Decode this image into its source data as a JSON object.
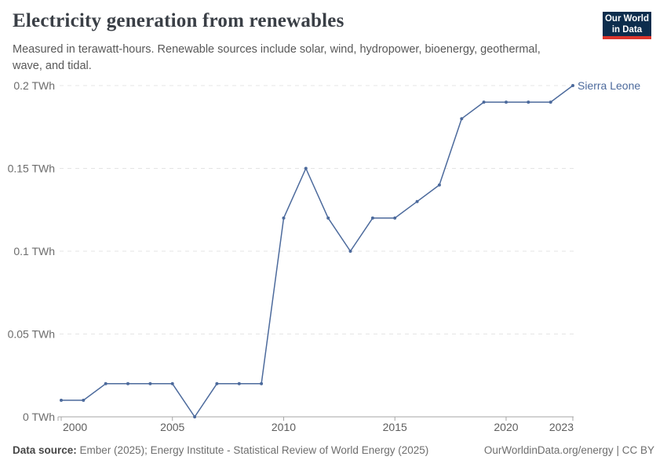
{
  "header": {
    "title": "Electricity generation from renewables",
    "subtitle": "Measured in terawatt-hours. Renewable sources include solar, wind, hydropower, bioenergy, geothermal, wave, and tidal.",
    "logo": {
      "line1": "Our World",
      "line2": "in Data"
    }
  },
  "chart_data": {
    "type": "line",
    "title": "Electricity generation from renewables",
    "unit": "TWh",
    "x": [
      2000,
      2001,
      2002,
      2003,
      2004,
      2005,
      2006,
      2007,
      2008,
      2009,
      2010,
      2011,
      2012,
      2013,
      2014,
      2015,
      2016,
      2017,
      2018,
      2019,
      2020,
      2021,
      2022,
      2023
    ],
    "series": [
      {
        "name": "Sierra Leone",
        "color": "#4C6A9C",
        "values": [
          0.01,
          0.01,
          0.02,
          0.02,
          0.02,
          0.02,
          0,
          0.02,
          0.02,
          0.02,
          0.12,
          0.15,
          0.12,
          0.1,
          0.12,
          0.12,
          0.13,
          0.14,
          0.18,
          0.19,
          0.19,
          0.19,
          0.19,
          0.2
        ]
      }
    ],
    "xlim": [
      2000,
      2023
    ],
    "ylim": [
      0,
      0.2
    ],
    "y_ticks": [
      {
        "value": 0,
        "label": "0 TWh"
      },
      {
        "value": 0.05,
        "label": "0.05 TWh"
      },
      {
        "value": 0.1,
        "label": "0.1 TWh"
      },
      {
        "value": 0.15,
        "label": "0.15 TWh"
      },
      {
        "value": 0.2,
        "label": "0.2 TWh"
      }
    ],
    "x_ticks": [
      {
        "value": 2000,
        "label": "2000"
      },
      {
        "value": 2005,
        "label": "2005"
      },
      {
        "value": 2010,
        "label": "2010"
      },
      {
        "value": 2015,
        "label": "2015"
      },
      {
        "value": 2020,
        "label": "2020"
      },
      {
        "value": 2023,
        "label": "2023"
      }
    ],
    "grid": "horizontal-dashed",
    "legend_position": "end-of-line-label",
    "colors": {
      "line": "#4C6A9C",
      "entity_label": "#4C6A9C",
      "gridline": "#e4e4e4",
      "axis": "#a6a6a6",
      "y_tick_label": "#6c6c6c",
      "x_tick_label": "#5e5e5e"
    }
  },
  "footer": {
    "source_label": "Data source:",
    "source_text": "Ember (2025); Energy Institute - Statistical Review of World Energy (2025)",
    "link_text": "OurWorldinData.org/energy",
    "separator": "|",
    "license": "CC BY"
  }
}
